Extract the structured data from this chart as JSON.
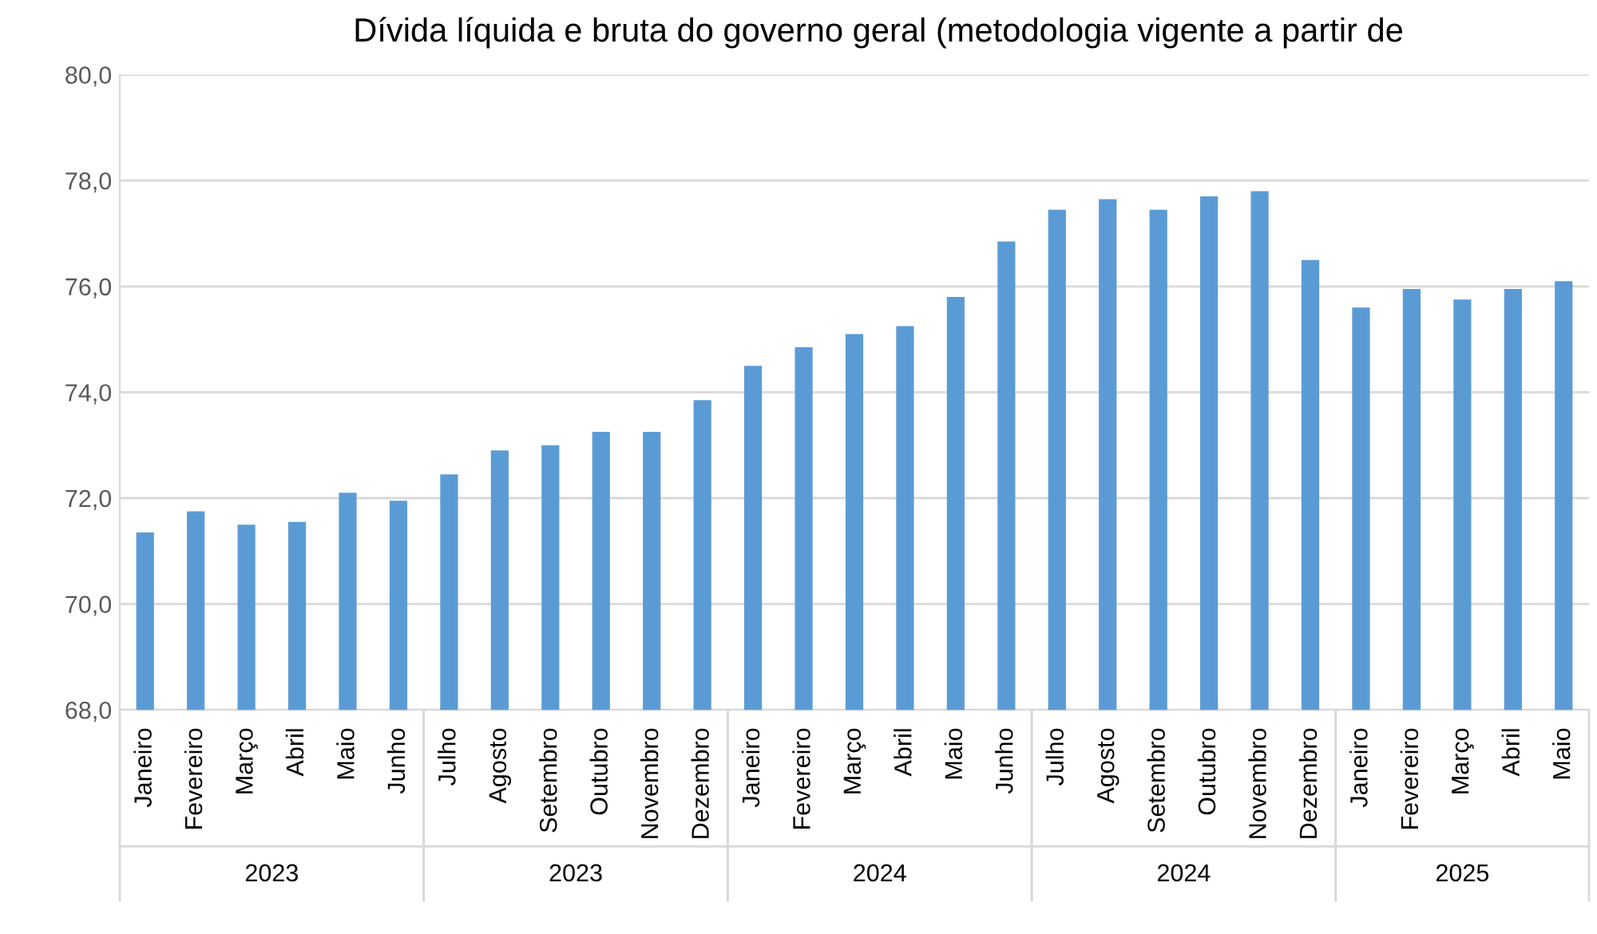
{
  "chart_data": {
    "type": "bar",
    "title": "Dívida líquida e bruta do governo geral (metodologia vigente a partir de",
    "categories": [
      "Janeiro",
      "Fevereiro",
      "Março",
      "Abril",
      "Maio",
      "Junho",
      "Julho",
      "Agosto",
      "Setembro",
      "Outubro",
      "Novembro",
      "Dezembro",
      "Janeiro",
      "Fevereiro",
      "Março",
      "Abril",
      "Maio",
      "Junho",
      "Julho",
      "Agosto",
      "Setembro",
      "Outubro",
      "Novembro",
      "Dezembro",
      "Janeiro",
      "Fevereiro",
      "Março",
      "Abril",
      "Maio"
    ],
    "values": [
      71.35,
      71.75,
      71.5,
      71.55,
      72.1,
      71.95,
      72.45,
      72.9,
      73.0,
      73.25,
      73.25,
      73.85,
      74.5,
      74.85,
      75.1,
      75.25,
      75.8,
      76.85,
      77.45,
      77.65,
      77.45,
      77.7,
      77.8,
      76.5,
      75.6,
      75.95,
      75.75,
      75.95,
      76.1
    ],
    "color": "#5b9bd5",
    "ylim": [
      68,
      80
    ],
    "yticks": [
      {
        "value": 68,
        "label": "68,0"
      },
      {
        "value": 70,
        "label": "70,0"
      },
      {
        "value": 72,
        "label": "72,0"
      },
      {
        "value": 74,
        "label": "74,0"
      },
      {
        "value": 76,
        "label": "76,0"
      },
      {
        "value": 78,
        "label": "78,0"
      },
      {
        "value": 80,
        "label": "80,0"
      }
    ],
    "grid": "y",
    "annotations": [
      "2023",
      "2023",
      "2024",
      "2024",
      "2025"
    ]
  }
}
